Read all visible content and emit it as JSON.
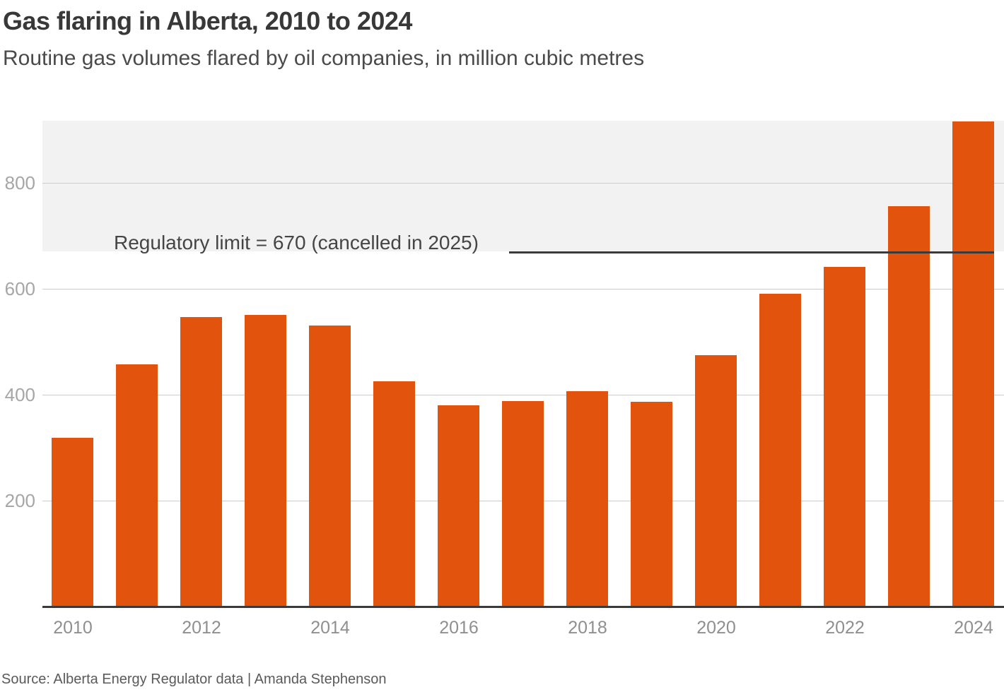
{
  "header": {
    "title": "Gas flaring in Alberta, 2010 to 2024",
    "subtitle": "Routine gas volumes flared by oil companies, in million cubic metres"
  },
  "annotation": {
    "label": "Regulatory limit = 670 (cancelled in 2025)",
    "value": 670
  },
  "footer": {
    "source": "Source: Alberta Energy Regulator data | Amanda Stephenson"
  },
  "colors": {
    "bar": "#e2530d",
    "band": "#f2f2f2",
    "grid": "#cccccc",
    "axis": "#3a3a3a",
    "limit_line": "#3a3a3a",
    "title": "#383838",
    "subtitle": "#4a4a4a",
    "annotation_text": "#454545",
    "y_tick": "#a6a6a6",
    "x_tick": "#8f8f8f",
    "source_text": "#5a5a5a"
  },
  "chart_data": {
    "type": "bar",
    "title": "Gas flaring in Alberta, 2010 to 2024",
    "subtitle": "Routine gas volumes flared by oil companies, in million cubic metres",
    "categories": [
      "2010",
      "2011",
      "2012",
      "2013",
      "2014",
      "2015",
      "2016",
      "2017",
      "2018",
      "2019",
      "2020",
      "2021",
      "2022",
      "2023",
      "2024"
    ],
    "values": [
      319,
      457,
      547,
      550,
      531,
      425,
      380,
      388,
      407,
      386,
      475,
      590,
      641,
      756,
      916
    ],
    "xlabel": "",
    "ylabel": "",
    "unit": "million cubic metres",
    "ylim": [
      0,
      917
    ],
    "yticks": [
      200,
      400,
      600,
      800
    ],
    "xtick_labels_shown": [
      "2010",
      "2012",
      "2014",
      "2016",
      "2018",
      "2020",
      "2022",
      "2024"
    ],
    "grid": "horizontal",
    "legend": "none",
    "reference_line": {
      "value": 670,
      "label": "Regulatory limit = 670 (cancelled in 2025)"
    },
    "shaded_band": {
      "y_from": 670,
      "y_to": 917
    }
  }
}
